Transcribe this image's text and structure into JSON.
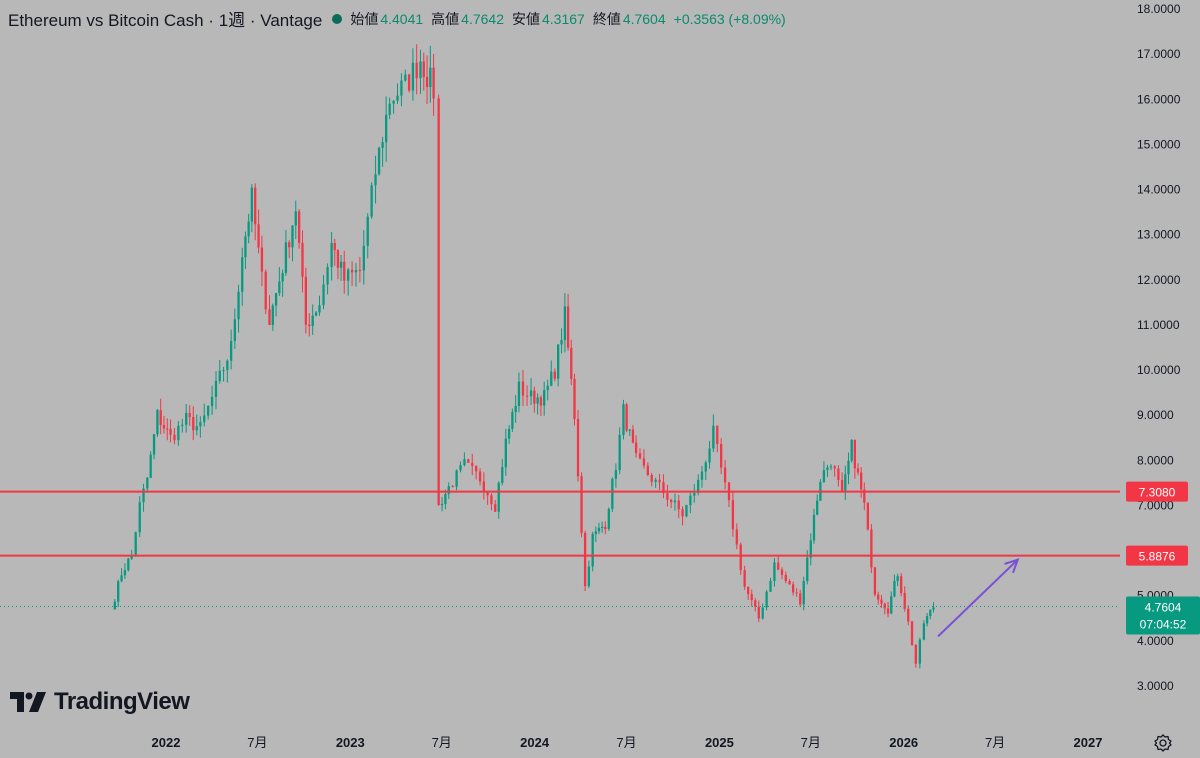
{
  "header": {
    "title": "Ethereum vs Bitcoin Cash · 1週 · Vantage",
    "open_label": "始値",
    "open": "4.4041",
    "high_label": "高値",
    "high": "4.7642",
    "low_label": "安値",
    "low": "4.3167",
    "close_label": "終値",
    "close": "4.7604",
    "change": "+0.3563 (+8.09%)"
  },
  "logo": {
    "text": "TradingView"
  },
  "colors": {
    "background": "#b8b8b8",
    "up": "#089981",
    "down": "#f23645",
    "level_line": "#f23645",
    "arrow": "#7b4fd6",
    "text": "#131722"
  },
  "chart_data": {
    "type": "candlestick",
    "y_ticks": [
      "3.0000",
      "4.0000",
      "5.0000",
      "6.0000",
      "7.0000",
      "8.0000",
      "9.0000",
      "10.0000",
      "11.0000",
      "12.0000",
      "13.0000",
      "14.0000",
      "15.0000",
      "16.0000",
      "17.0000",
      "18.0000"
    ],
    "x_ticks": [
      {
        "label": "2022",
        "date": "2022-01-01"
      },
      {
        "label": "7月",
        "date": "2022-07-01"
      },
      {
        "label": "2023",
        "date": "2023-01-01"
      },
      {
        "label": "7月",
        "date": "2023-07-01"
      },
      {
        "label": "2024",
        "date": "2024-01-01"
      },
      {
        "label": "7月",
        "date": "2024-07-01"
      },
      {
        "label": "2025",
        "date": "2025-01-01"
      },
      {
        "label": "7月",
        "date": "2025-07-01"
      },
      {
        "label": "2026",
        "date": "2026-01-01"
      },
      {
        "label": "7月",
        "date": "2026-07-01"
      },
      {
        "label": "2027",
        "date": "2027-01-01"
      }
    ],
    "horizontal_levels": [
      {
        "value": 7.308,
        "label": "7.3080"
      },
      {
        "value": 5.8876,
        "label": "5.8876"
      }
    ],
    "current_price": {
      "value": 4.7604,
      "label": "4.7604",
      "countdown": "07:04:52"
    },
    "arrow": {
      "from": {
        "date": "2026-03-10",
        "value": 4.1
      },
      "to": {
        "date": "2026-08-15",
        "value": 5.8
      }
    },
    "series": [
      {
        "date": "2021-09-15",
        "value": 4.7
      },
      {
        "date": "2021-10-05",
        "value": 5.5
      },
      {
        "date": "2021-10-25",
        "value": 5.9
      },
      {
        "date": "2021-11-10",
        "value": 7.0
      },
      {
        "date": "2021-11-25",
        "value": 7.6
      },
      {
        "date": "2021-12-15",
        "value": 9.0
      },
      {
        "date": "2022-01-10",
        "value": 8.5
      },
      {
        "date": "2022-02-10",
        "value": 8.9
      },
      {
        "date": "2022-03-10",
        "value": 8.7
      },
      {
        "date": "2022-04-10",
        "value": 9.6
      },
      {
        "date": "2022-05-10",
        "value": 10.5
      },
      {
        "date": "2022-06-01",
        "value": 12.6
      },
      {
        "date": "2022-06-20",
        "value": 13.8
      },
      {
        "date": "2022-07-10",
        "value": 12.0
      },
      {
        "date": "2022-07-25",
        "value": 11.1
      },
      {
        "date": "2022-08-20",
        "value": 12.3
      },
      {
        "date": "2022-09-15",
        "value": 13.6
      },
      {
        "date": "2022-10-05",
        "value": 11.0
      },
      {
        "date": "2022-11-01",
        "value": 11.5
      },
      {
        "date": "2022-11-25",
        "value": 12.8
      },
      {
        "date": "2022-12-20",
        "value": 12.0
      },
      {
        "date": "2023-01-20",
        "value": 12.2
      },
      {
        "date": "2023-02-20",
        "value": 14.4
      },
      {
        "date": "2023-03-20",
        "value": 16.0
      },
      {
        "date": "2023-04-20",
        "value": 16.3
      },
      {
        "date": "2023-05-20",
        "value": 16.9
      },
      {
        "date": "2023-06-15",
        "value": 16.2
      },
      {
        "date": "2023-06-25",
        "value": 7.0
      },
      {
        "date": "2023-07-15",
        "value": 7.4
      },
      {
        "date": "2023-08-15",
        "value": 7.9
      },
      {
        "date": "2023-09-15",
        "value": 7.6
      },
      {
        "date": "2023-10-15",
        "value": 7.0
      },
      {
        "date": "2023-11-05",
        "value": 8.4
      },
      {
        "date": "2023-12-01",
        "value": 9.6
      },
      {
        "date": "2023-12-25",
        "value": 9.4
      },
      {
        "date": "2024-01-20",
        "value": 9.4
      },
      {
        "date": "2024-02-10",
        "value": 10.0
      },
      {
        "date": "2024-03-01",
        "value": 11.2
      },
      {
        "date": "2024-03-20",
        "value": 9.0
      },
      {
        "date": "2024-04-10",
        "value": 5.2
      },
      {
        "date": "2024-04-25",
        "value": 6.3
      },
      {
        "date": "2024-05-20",
        "value": 6.6
      },
      {
        "date": "2024-06-10",
        "value": 7.9
      },
      {
        "date": "2024-06-25",
        "value": 9.1
      },
      {
        "date": "2024-07-20",
        "value": 8.0
      },
      {
        "date": "2024-08-20",
        "value": 7.6
      },
      {
        "date": "2024-09-20",
        "value": 7.2
      },
      {
        "date": "2024-10-20",
        "value": 6.8
      },
      {
        "date": "2024-11-20",
        "value": 7.5
      },
      {
        "date": "2024-12-20",
        "value": 8.6
      },
      {
        "date": "2025-01-20",
        "value": 7.0
      },
      {
        "date": "2025-02-20",
        "value": 5.2
      },
      {
        "date": "2025-03-20",
        "value": 4.5
      },
      {
        "date": "2025-04-20",
        "value": 5.7
      },
      {
        "date": "2025-05-20",
        "value": 5.2
      },
      {
        "date": "2025-06-10",
        "value": 4.9
      },
      {
        "date": "2025-07-01",
        "value": 6.3
      },
      {
        "date": "2025-07-20",
        "value": 7.6
      },
      {
        "date": "2025-08-10",
        "value": 8.0
      },
      {
        "date": "2025-09-01",
        "value": 7.2
      },
      {
        "date": "2025-09-20",
        "value": 8.3
      },
      {
        "date": "2025-10-15",
        "value": 7.0
      },
      {
        "date": "2025-11-05",
        "value": 5.1
      },
      {
        "date": "2025-12-01",
        "value": 4.7
      },
      {
        "date": "2025-12-20",
        "value": 5.5
      },
      {
        "date": "2026-01-10",
        "value": 4.4
      },
      {
        "date": "2026-01-25",
        "value": 3.5
      },
      {
        "date": "2026-02-10",
        "value": 4.4
      },
      {
        "date": "2026-03-01",
        "value": 4.76
      }
    ]
  }
}
